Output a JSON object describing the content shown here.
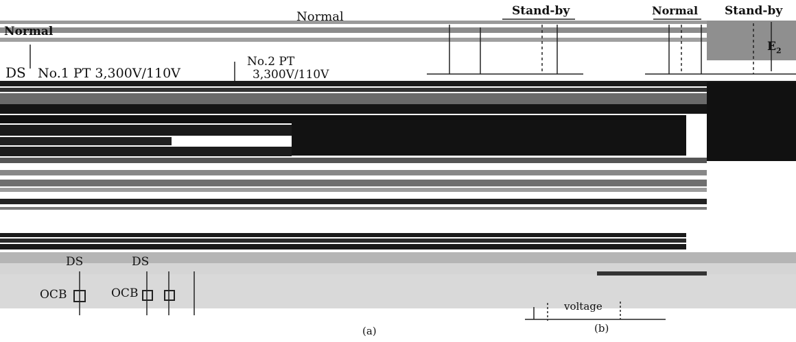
{
  "diagram": {
    "labels": {
      "normal_a": "Normal",
      "normal_center": "Normal",
      "ds_top": "DS",
      "pt1": "No.1 PT 3,300V/110V",
      "pt2_line1": "No.2 PT",
      "pt2_line2": "3,300V/110V",
      "standby_b": "Stand-by",
      "normal_b": "Normal",
      "standby_b2": "Stand-by",
      "e2": "E2",
      "ds_bottom1": "DS",
      "ds_bottom2": "DS",
      "ocb1": "OCB",
      "ocb2": "OCB",
      "voltage": "voltage",
      "caption_a": "(a)",
      "caption_b": "(b)"
    },
    "colors": {
      "band_dark": "#111111",
      "band_mid": "#555555",
      "band_gray": "#8c8c8c",
      "band_light": "#c9c9c9",
      "line": "#222222",
      "background": "#ffffff"
    }
  }
}
